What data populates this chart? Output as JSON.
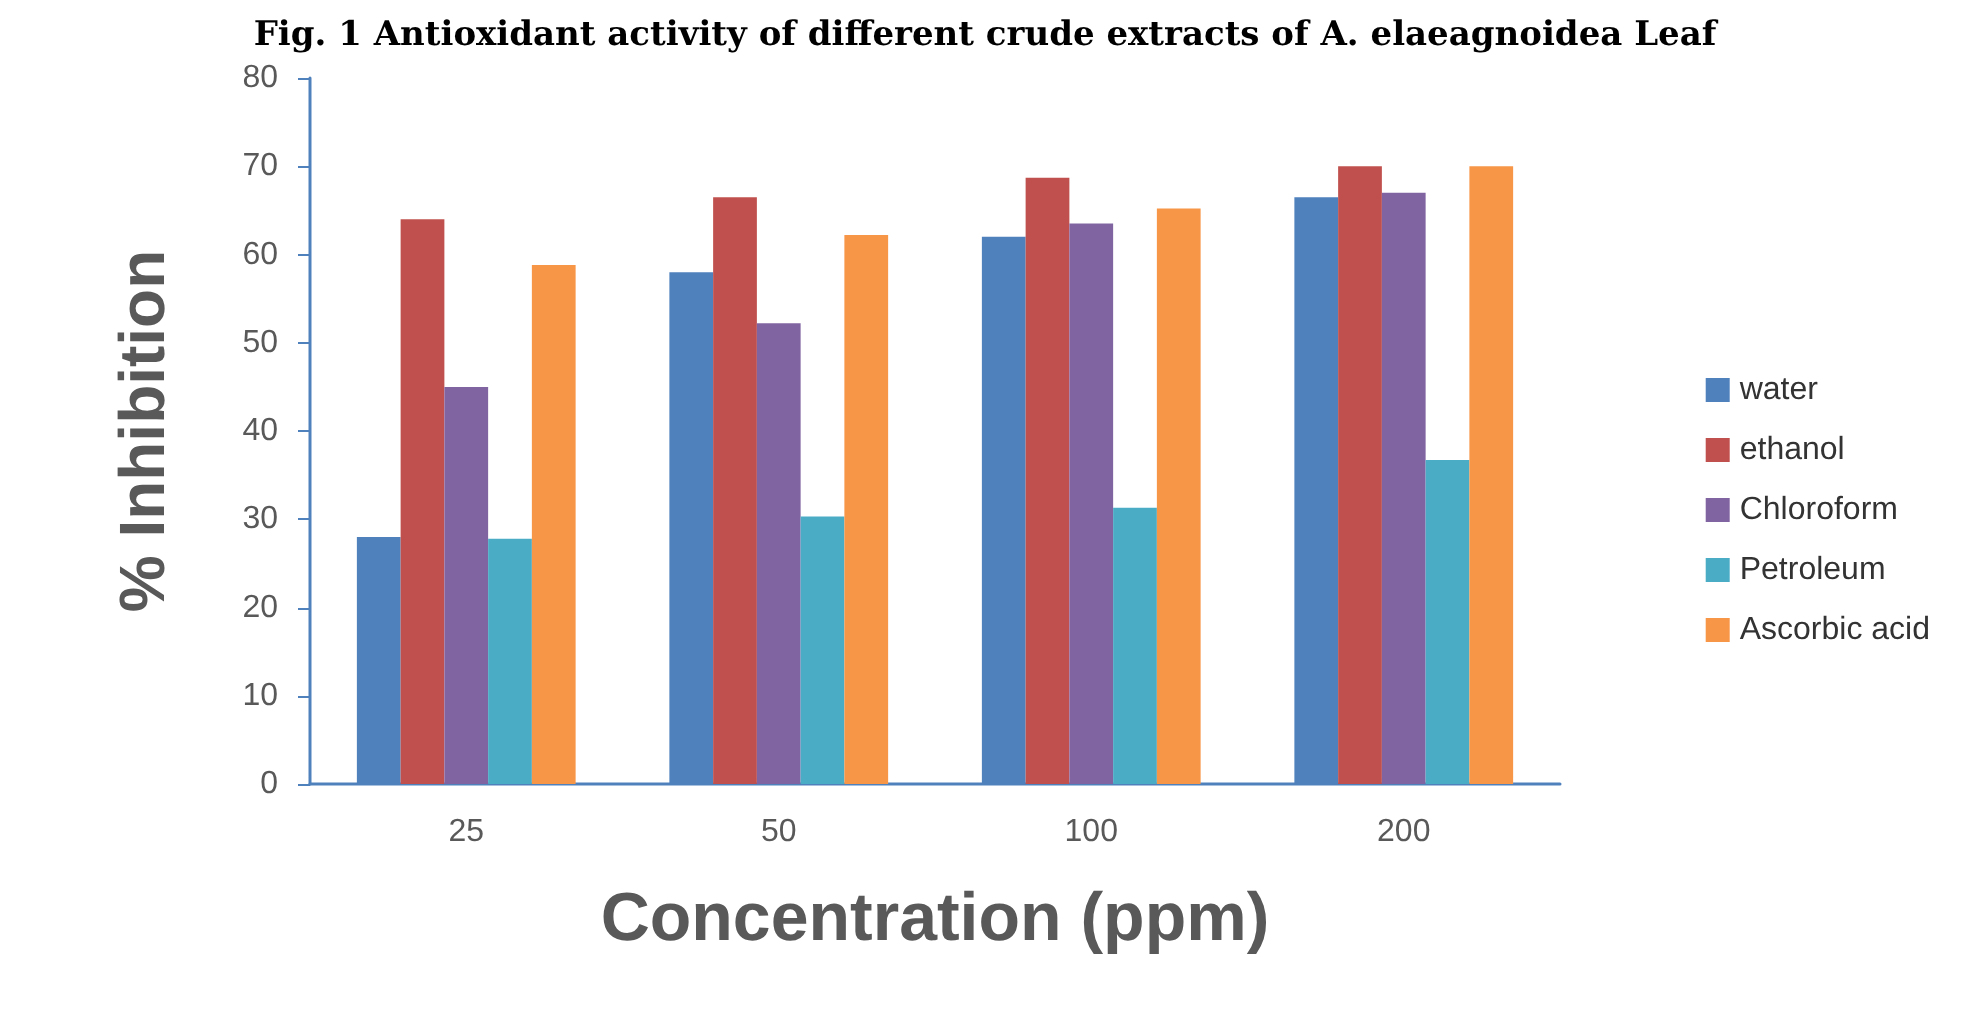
{
  "chart_data": {
    "type": "bar",
    "title": "Fig. 1 Antioxidant activity of different crude extracts of A. elaeagnoidea Leaf",
    "xlabel": "Concentration (ppm)",
    "ylabel": "% Inhibition",
    "categories": [
      "25",
      "50",
      "100",
      "200"
    ],
    "series": [
      {
        "name": "water",
        "color": "#4f81bd",
        "values": [
          28,
          58,
          62,
          66.5
        ]
      },
      {
        "name": "ethanol",
        "color": "#c0504d",
        "values": [
          64,
          66.5,
          68.7,
          70
        ]
      },
      {
        "name": "Chloroform",
        "color": "#8064a2",
        "values": [
          45,
          52.2,
          63.5,
          67
        ]
      },
      {
        "name": "Petroleum",
        "color": "#4bacc6",
        "values": [
          27.8,
          30.3,
          31.3,
          36.7
        ]
      },
      {
        "name": "Ascorbic acid",
        "color": "#f79646",
        "values": [
          58.8,
          62.2,
          65.2,
          70
        ]
      }
    ],
    "ylim": [
      0,
      80
    ],
    "yticks": [
      0,
      10,
      20,
      30,
      40,
      50,
      60,
      70,
      80
    ],
    "grid": false,
    "legend": "right"
  }
}
